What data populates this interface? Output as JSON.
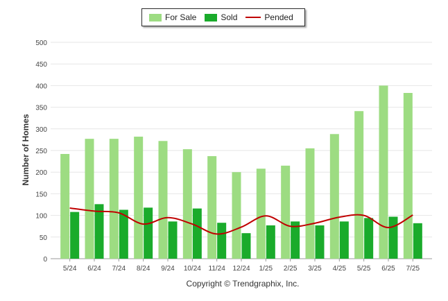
{
  "legend": {
    "for_sale": "For Sale",
    "sold": "Sold",
    "pended": "Pended"
  },
  "footer": {
    "copyright": "Copyright © Trendgraphix, Inc."
  },
  "colors": {
    "for_sale": "#9ddc82",
    "sold": "#1aab2b",
    "pended": "#c00000",
    "grid": "#e6e6e6",
    "axis_text": "#444444"
  },
  "chart_data": {
    "type": "bar",
    "title": "",
    "xlabel": "",
    "ylabel": "Number of Homes",
    "ylim": [
      0,
      500
    ],
    "yticks": [
      0,
      50,
      100,
      150,
      200,
      250,
      300,
      350,
      400,
      450,
      500
    ],
    "grid": true,
    "legend_position": "top-center",
    "categories": [
      "5/24",
      "6/24",
      "7/24",
      "8/24",
      "9/24",
      "10/24",
      "11/24",
      "12/24",
      "1/25",
      "2/25",
      "3/25",
      "4/25",
      "5/25",
      "6/25",
      "7/25"
    ],
    "series": [
      {
        "name": "For Sale",
        "type": "bar",
        "values": [
          242,
          277,
          277,
          282,
          272,
          253,
          237,
          200,
          208,
          215,
          255,
          288,
          341,
          400,
          383
        ]
      },
      {
        "name": "Sold",
        "type": "bar",
        "values": [
          108,
          126,
          113,
          118,
          86,
          116,
          83,
          59,
          77,
          86,
          77,
          86,
          94,
          97,
          82
        ]
      },
      {
        "name": "Pended",
        "type": "line",
        "values": [
          117,
          110,
          106,
          80,
          95,
          80,
          57,
          73,
          99,
          75,
          82,
          96,
          100,
          72,
          101
        ]
      }
    ]
  }
}
